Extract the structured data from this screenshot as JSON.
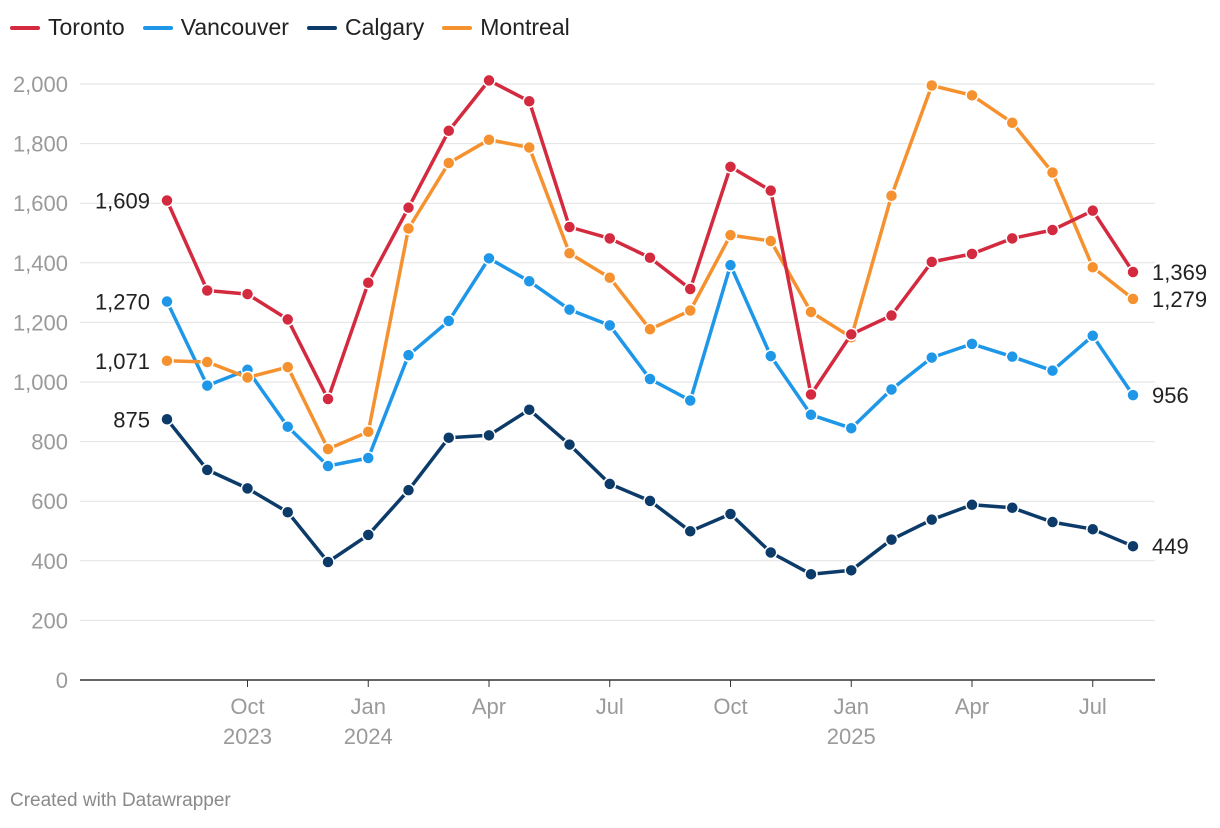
{
  "credit": "Created with Datawrapper",
  "chart_data": {
    "type": "line",
    "title": "",
    "xlabel": "",
    "ylabel": "",
    "ylim": [
      0,
      2000
    ],
    "y_ticks": [
      "0",
      "200",
      "400",
      "600",
      "800",
      "1,000",
      "1,200",
      "1,400",
      "1,600",
      "1,800",
      "2,000"
    ],
    "x": [
      "Aug 2023",
      "Sep 2023",
      "Oct 2023",
      "Nov 2023",
      "Dec 2023",
      "Jan 2024",
      "Feb 2024",
      "Mar 2024",
      "Apr 2024",
      "May 2024",
      "Jun 2024",
      "Jul 2024",
      "Aug 2024",
      "Sep 2024",
      "Oct 2024",
      "Nov 2024",
      "Dec 2024",
      "Jan 2025",
      "Feb 2025",
      "Mar 2025",
      "Apr 2025",
      "May 2025",
      "Jun 2025",
      "Jul 2025",
      "Aug 2025"
    ],
    "x_ticks": [
      {
        "index": 2,
        "label": "Oct",
        "sub": "2023"
      },
      {
        "index": 5,
        "label": "Jan",
        "sub": "2024"
      },
      {
        "index": 8,
        "label": "Apr",
        "sub": ""
      },
      {
        "index": 11,
        "label": "Jul",
        "sub": ""
      },
      {
        "index": 14,
        "label": "Oct",
        "sub": ""
      },
      {
        "index": 17,
        "label": "Jan",
        "sub": "2025"
      },
      {
        "index": 20,
        "label": "Apr",
        "sub": ""
      },
      {
        "index": 23,
        "label": "Jul",
        "sub": ""
      }
    ],
    "series": [
      {
        "name": "Calgary",
        "color": "#0c3b69",
        "start_label": "875",
        "end_label": "449",
        "values": [
          875,
          705,
          643,
          563,
          396,
          487,
          637,
          813,
          821,
          907,
          790,
          658,
          601,
          499,
          557,
          428,
          355,
          368,
          471,
          538,
          588,
          578,
          530,
          506,
          449
        ]
      },
      {
        "name": "Vancouver",
        "color": "#1f97e8",
        "start_label": "1,270",
        "end_label": "956",
        "values": [
          1270,
          988,
          1041,
          850,
          718,
          745,
          1090,
          1205,
          1415,
          1338,
          1243,
          1190,
          1010,
          938,
          1392,
          1087,
          890,
          845,
          975,
          1082,
          1128,
          1085,
          1038,
          1155,
          956
        ]
      },
      {
        "name": "Montreal",
        "color": "#f5922f",
        "start_label": "1,071",
        "end_label": "1,279",
        "values": [
          1071,
          1067,
          1015,
          1050,
          775,
          833,
          1515,
          1735,
          1813,
          1787,
          1432,
          1350,
          1177,
          1240,
          1493,
          1473,
          1235,
          1150,
          1625,
          1995,
          1962,
          1870,
          1703,
          1385,
          1279
        ]
      },
      {
        "name": "Toronto",
        "color": "#d42a3f",
        "start_label": "1,609",
        "end_label": "1,369",
        "values": [
          1609,
          1307,
          1295,
          1210,
          943,
          1333,
          1585,
          1843,
          2012,
          1942,
          1520,
          1482,
          1417,
          1312,
          1722,
          1642,
          958,
          1160,
          1223,
          1403,
          1430,
          1482,
          1510,
          1575,
          1369
        ]
      }
    ],
    "legend": [
      "Toronto",
      "Vancouver",
      "Calgary",
      "Montreal"
    ]
  }
}
